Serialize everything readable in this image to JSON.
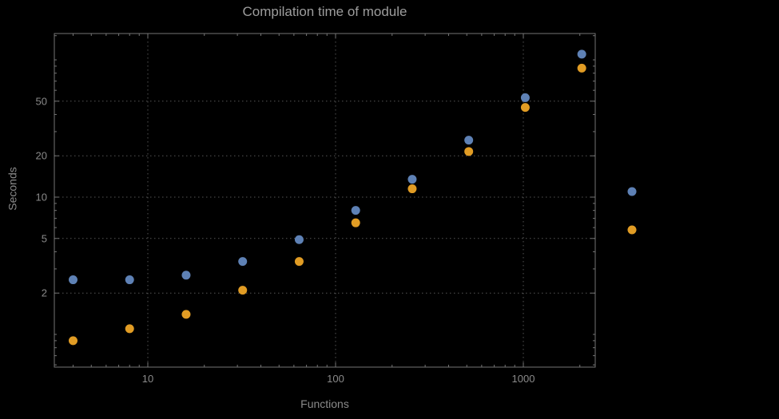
{
  "chart_data": {
    "type": "scatter",
    "title": "Compilation time of module",
    "xlabel": "Functions",
    "ylabel": "Seconds",
    "scale": "log-log",
    "grid": "dotted",
    "x": [
      4,
      8,
      16,
      32,
      64,
      128,
      256,
      512,
      1024,
      2048
    ],
    "series": [
      {
        "name": "blue-series",
        "color": "#5e81b5",
        "values": [
          2.5,
          2.5,
          2.7,
          3.4,
          4.9,
          8.0,
          13.5,
          26,
          53,
          110
        ]
      },
      {
        "name": "orange-series",
        "color": "#e19c24",
        "values": [
          0.9,
          1.1,
          1.4,
          2.1,
          3.4,
          6.5,
          11.5,
          21.5,
          45,
          87
        ]
      }
    ],
    "x_ticks": [
      {
        "v": 10,
        "label": "10"
      },
      {
        "v": 100,
        "label": "100"
      },
      {
        "v": 1000,
        "label": "1000"
      }
    ],
    "y_ticks": [
      {
        "v": 2,
        "label": "2"
      },
      {
        "v": 5,
        "label": "5"
      },
      {
        "v": 10,
        "label": "10"
      },
      {
        "v": 20,
        "label": "20"
      },
      {
        "v": 50,
        "label": "50"
      }
    ],
    "x_minor_ticks": [
      4,
      5,
      6,
      7,
      8,
      9,
      20,
      30,
      40,
      50,
      60,
      70,
      80,
      90,
      200,
      300,
      400,
      500,
      600,
      700,
      800,
      900,
      2000
    ],
    "y_minor_ticks": [
      0.6,
      0.7,
      0.8,
      0.9,
      1,
      3,
      4,
      6,
      7,
      8,
      9,
      30,
      40,
      60,
      70,
      80,
      90,
      100,
      150
    ],
    "xlim": [
      3.2,
      2400
    ],
    "ylim": [
      0.58,
      155
    ],
    "legend_position": "right-outside"
  },
  "legend": {
    "markers": [
      {
        "series": "blue-series",
        "color": "#5e81b5"
      },
      {
        "series": "orange-series",
        "color": "#e19c24"
      }
    ]
  },
  "colors": {
    "background": "#000000",
    "frame": "#757575",
    "grid": "#555555",
    "title_text": "#9d9d9d",
    "tick_text": "#8a8a8a",
    "axis_label_text": "#8a8a8a"
  }
}
